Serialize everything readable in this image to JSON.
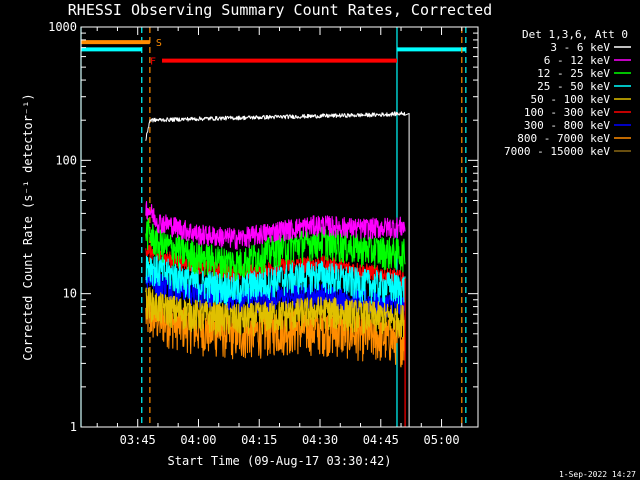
{
  "chart_data": {
    "type": "line",
    "title": "RHESSI Observing Summary Count Rates, Corrected",
    "xlabel": "Start Time (09-Aug-17 03:30:42)",
    "ylabel": "Corrected Count Rate (s⁻¹ detector⁻¹)",
    "yscale": "log",
    "ylim": [
      1,
      1000
    ],
    "xlim": [
      "03:31",
      "05:09"
    ],
    "x_ticks": [
      "03:45",
      "04:00",
      "04:15",
      "04:30",
      "04:45",
      "05:00"
    ],
    "y_ticks": [
      "1",
      "10",
      "100",
      "1000"
    ],
    "legend_title": "Det 1,3,6, Att 0",
    "legend_position": "right",
    "series": [
      {
        "name": "3 - 6 keV",
        "color": "#ffffff",
        "x": [
          "03:47",
          "03:48",
          "04:00",
          "04:15",
          "04:30",
          "04:45",
          "04:51",
          "04:52",
          "04:52"
        ],
        "y": [
          140,
          200,
          205,
          210,
          215,
          220,
          225,
          225,
          1
        ]
      },
      {
        "name": "6 - 12 keV",
        "color": "#ff00ff",
        "x": [
          "03:47",
          "03:50",
          "04:00",
          "04:10",
          "04:20",
          "04:30",
          "04:40",
          "04:51"
        ],
        "y": [
          45,
          35,
          28,
          26,
          30,
          33,
          31,
          32
        ]
      },
      {
        "name": "12 - 25 keV",
        "color": "#00ff00",
        "x": [
          "03:47",
          "03:50",
          "04:00",
          "04:10",
          "04:20",
          "04:30",
          "04:40",
          "04:51"
        ],
        "y": [
          30,
          24,
          19,
          17,
          22,
          25,
          22,
          20
        ]
      },
      {
        "name": "25 - 50 keV",
        "color": "#00ffff",
        "x": [
          "03:47",
          "03:50",
          "04:00",
          "04:10",
          "04:20",
          "04:30",
          "04:40",
          "04:51"
        ],
        "y": [
          17,
          15,
          12,
          11,
          13,
          14,
          12,
          11
        ]
      },
      {
        "name": "50 - 100 keV",
        "color": "#e0c000",
        "x": [
          "03:47",
          "03:50",
          "04:00",
          "04:10",
          "04:20",
          "04:30",
          "04:40",
          "04:51"
        ],
        "y": [
          9,
          8,
          7,
          6.5,
          7,
          7.5,
          7,
          6.5
        ]
      },
      {
        "name": "100 - 300 keV",
        "color": "#ff0000",
        "x": [
          "03:47",
          "03:50",
          "04:00",
          "04:10",
          "04:20",
          "04:30",
          "04:40",
          "04:51"
        ],
        "y": [
          22,
          19,
          16,
          14,
          16,
          17,
          15,
          13
        ]
      },
      {
        "name": "300 - 800 keV",
        "color": "#0000ff",
        "x": [
          "03:47",
          "03:50",
          "04:00",
          "04:10",
          "04:20",
          "04:30",
          "04:40",
          "04:51"
        ],
        "y": [
          14,
          12,
          10,
          9,
          9.5,
          10,
          9,
          8
        ]
      },
      {
        "name": "800 - 7000 keV",
        "color": "#ff8c00",
        "x": [
          "03:47",
          "03:50",
          "04:00",
          "04:10",
          "04:20",
          "04:30",
          "04:40",
          "04:51"
        ],
        "y": [
          7,
          6.5,
          5.5,
          5,
          5.5,
          5.5,
          5,
          4.5
        ]
      },
      {
        "name": "7000 - 15000 keV",
        "color": "#8b6914",
        "x": [],
        "y": []
      }
    ],
    "annotations": [
      {
        "label": "S",
        "color": "#ff8c00",
        "x_start": "03:31",
        "x_end": "03:48",
        "y": 770
      },
      {
        "label": "F",
        "color": "#ff0000",
        "x_start": "03:51",
        "x_end": "04:49",
        "y": 560
      }
    ],
    "attenuator_segments": [
      {
        "color": "#00ffff",
        "x_start": "03:31",
        "x_end": "03:46",
        "y": 680
      },
      {
        "color": "#00ffff",
        "x_start": "04:49",
        "x_end": "05:06",
        "y": 680
      }
    ],
    "vertical_markers": [
      {
        "color": "#00ffff",
        "x": "03:31",
        "style": "solid"
      },
      {
        "color": "#00ffff",
        "x": "03:46",
        "style": "dashed"
      },
      {
        "color": "#ff8c00",
        "x": "03:48",
        "style": "dashed"
      },
      {
        "color": "#00ffff",
        "x": "04:49",
        "style": "solid"
      },
      {
        "color": "#ff8c00",
        "x": "05:05",
        "style": "dashed"
      },
      {
        "color": "#00ffff",
        "x": "05:06",
        "style": "dashed"
      }
    ]
  },
  "footer_date": "1-Sep-2022 14:27"
}
